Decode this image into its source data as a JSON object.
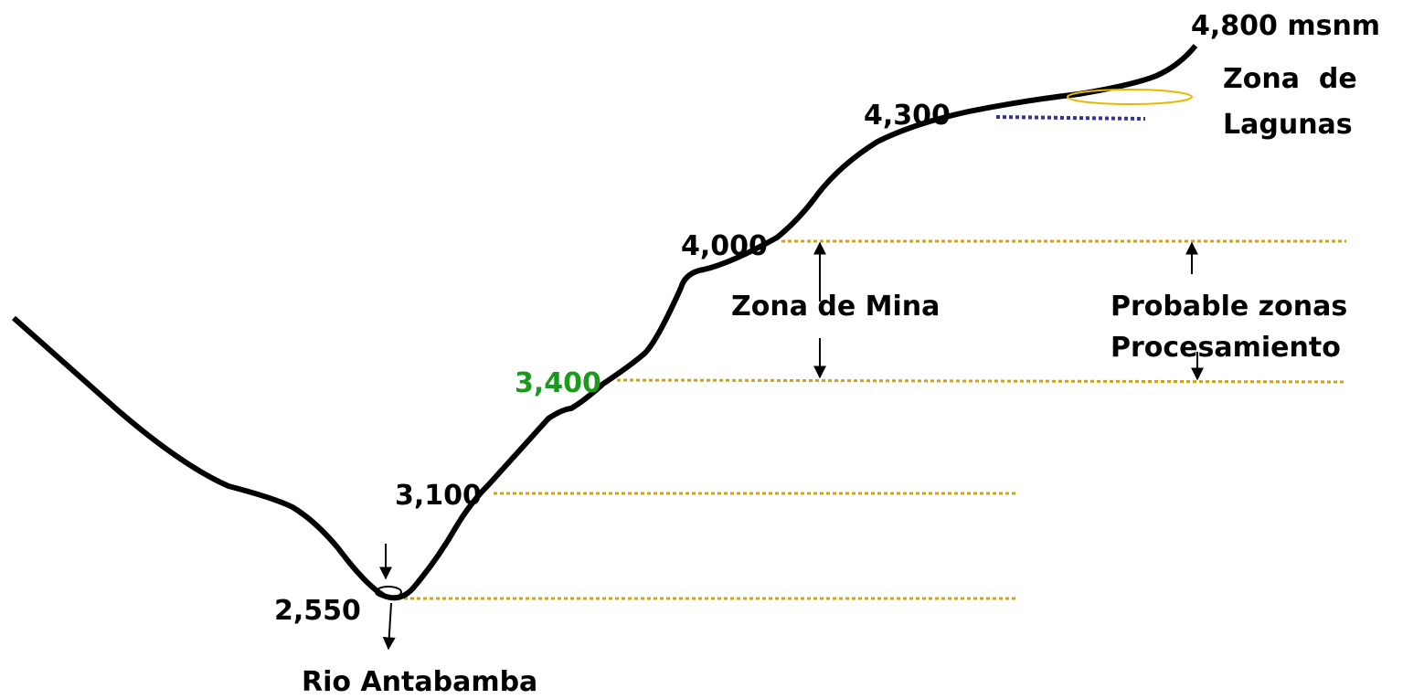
{
  "profile": {
    "peak": "4,800 msnm",
    "lagoons": [
      "Zona  de",
      "Lagunas"
    ],
    "levels": {
      "l4300": "4,300",
      "l4000": "4,000",
      "l3400": "3,400",
      "l3100": "3,100",
      "l2550": "2,550"
    },
    "mine_zone": "Zona de Mina",
    "processing_zone": [
      "Probable zonas",
      "Procesamiento"
    ],
    "river": "Rio Antabamba"
  }
}
